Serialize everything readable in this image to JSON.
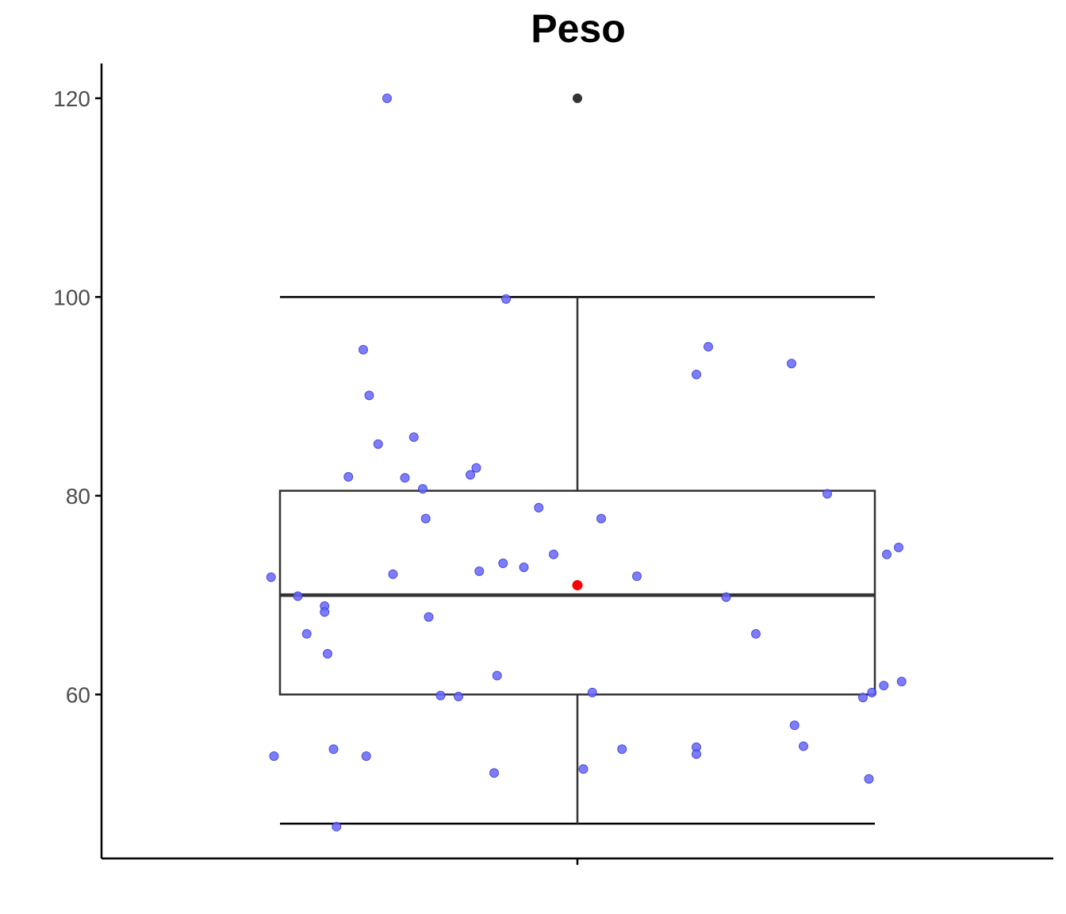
{
  "chart_data": {
    "type": "boxplot",
    "title": "Peso",
    "xlabel": "",
    "ylabel": "",
    "ylim": [
      43.5,
      123.5
    ],
    "yticks": [
      60,
      80,
      100,
      120
    ],
    "grid": false,
    "legend": "none",
    "box": {
      "min": 47,
      "q1": 60,
      "median": 70,
      "q3": 80.5,
      "max": 100,
      "mean": 71,
      "outliers": [
        120
      ]
    },
    "colors": {
      "points": "#6666ff",
      "points_edge": "#3333cc",
      "mean": "#ff0000",
      "outlier": "#333333",
      "box": "#333333"
    },
    "points": [
      {
        "jitter": -0.64,
        "y": 120
      },
      {
        "jitter": -0.24,
        "y": 99.8
      },
      {
        "jitter": -0.72,
        "y": 94.7
      },
      {
        "jitter": -0.7,
        "y": 90.1
      },
      {
        "jitter": -0.67,
        "y": 85.2
      },
      {
        "jitter": -0.55,
        "y": 85.9
      },
      {
        "jitter": -0.77,
        "y": 81.9
      },
      {
        "jitter": -0.58,
        "y": 81.8
      },
      {
        "jitter": -0.52,
        "y": 80.7
      },
      {
        "jitter": -0.34,
        "y": 82.8
      },
      {
        "jitter": -0.36,
        "y": 82.1
      },
      {
        "jitter": -0.13,
        "y": 78.8
      },
      {
        "jitter": -0.51,
        "y": 77.7
      },
      {
        "jitter": -0.08,
        "y": 74.1
      },
      {
        "jitter": 0.08,
        "y": 77.7
      },
      {
        "jitter": -0.25,
        "y": 73.2
      },
      {
        "jitter": -0.18,
        "y": 72.8
      },
      {
        "jitter": -0.33,
        "y": 72.4
      },
      {
        "jitter": -0.62,
        "y": 72.1
      },
      {
        "jitter": 0.2,
        "y": 71.9
      },
      {
        "jitter": -1.03,
        "y": 71.8
      },
      {
        "jitter": -0.94,
        "y": 69.9
      },
      {
        "jitter": -0.85,
        "y": 68.9
      },
      {
        "jitter": -0.85,
        "y": 68.3
      },
      {
        "jitter": -0.5,
        "y": 67.8
      },
      {
        "jitter": 0.5,
        "y": 69.8
      },
      {
        "jitter": -0.91,
        "y": 66.1
      },
      {
        "jitter": 0.6,
        "y": 66.1
      },
      {
        "jitter": -0.84,
        "y": 64.1
      },
      {
        "jitter": -0.27,
        "y": 61.9
      },
      {
        "jitter": -0.46,
        "y": 59.9
      },
      {
        "jitter": -0.4,
        "y": 59.8
      },
      {
        "jitter": 0.05,
        "y": 60.2
      },
      {
        "jitter": 1.04,
        "y": 74.1
      },
      {
        "jitter": 1.08,
        "y": 74.8
      },
      {
        "jitter": 0.84,
        "y": 80.2
      },
      {
        "jitter": 0.72,
        "y": 93.3
      },
      {
        "jitter": 0.4,
        "y": 92.2
      },
      {
        "jitter": 0.44,
        "y": 95.0
      },
      {
        "jitter": 1.09,
        "y": 61.3
      },
      {
        "jitter": 1.03,
        "y": 60.9
      },
      {
        "jitter": 0.99,
        "y": 60.2
      },
      {
        "jitter": 0.96,
        "y": 59.7
      },
      {
        "jitter": 0.73,
        "y": 56.9
      },
      {
        "jitter": 0.76,
        "y": 54.8
      },
      {
        "jitter": 0.4,
        "y": 54.7
      },
      {
        "jitter": 0.4,
        "y": 54.0
      },
      {
        "jitter": 0.15,
        "y": 54.5
      },
      {
        "jitter": 0.02,
        "y": 52.5
      },
      {
        "jitter": -0.28,
        "y": 52.1
      },
      {
        "jitter": -1.02,
        "y": 53.8
      },
      {
        "jitter": -0.82,
        "y": 54.5
      },
      {
        "jitter": -0.71,
        "y": 53.8
      },
      {
        "jitter": 0.98,
        "y": 51.5
      },
      {
        "jitter": -0.81,
        "y": 46.7
      }
    ]
  }
}
